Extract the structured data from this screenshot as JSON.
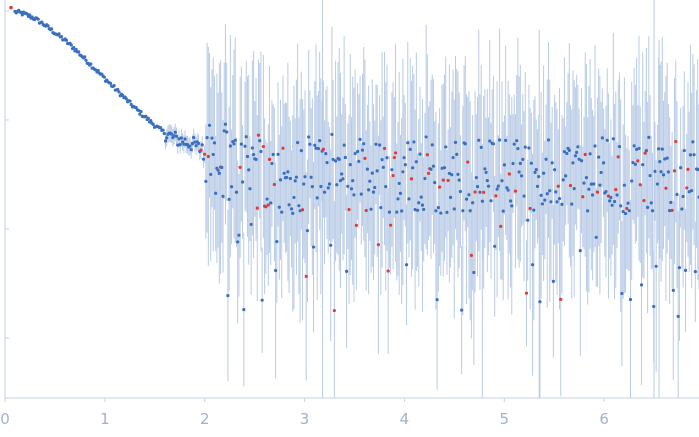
{
  "chart_data": {
    "type": "scatter",
    "title": "",
    "xlabel": "",
    "ylabel": "",
    "xlim": [
      0,
      6.95
    ],
    "ylim": [
      -1.55,
      2.1
    ],
    "y_scale": "log",
    "x_ticks": [
      "0",
      "1",
      "2",
      "3",
      "4",
      "5",
      "6"
    ],
    "grid": false,
    "legend": "none",
    "colors": {
      "points": "#3a6fc0",
      "outliers": "#e53935",
      "error_bars": "#b9cbe6",
      "axis_text": "#9fb3cc"
    },
    "series": [
      {
        "name": "",
        "x": [
          0.12,
          0.2,
          0.3,
          0.4,
          0.5,
          0.6,
          0.7,
          0.8,
          0.9,
          1.0,
          1.1,
          1.2,
          1.3,
          1.4,
          1.5,
          1.6,
          1.7,
          1.8,
          1.9,
          2.0,
          2.2,
          2.4,
          2.6,
          2.8,
          3.0,
          3.2,
          3.4,
          3.6,
          3.8,
          4.0,
          4.2,
          4.4,
          4.6,
          4.8,
          5.0,
          5.2,
          5.4,
          5.6,
          5.8,
          6.0,
          6.2,
          6.4,
          6.6,
          6.8,
          6.95
        ],
        "y": [
          1.99,
          1.97,
          1.93,
          1.87,
          1.8,
          1.73,
          1.65,
          1.56,
          1.47,
          1.38,
          1.29,
          1.2,
          1.11,
          1.03,
          0.95,
          0.88,
          0.83,
          0.8,
          0.77,
          0.7,
          0.62,
          0.55,
          0.5,
          0.48,
          0.5,
          0.55,
          0.48,
          0.52,
          0.5,
          0.48,
          0.52,
          0.46,
          0.5,
          0.48,
          0.5,
          0.52,
          0.48,
          0.5,
          0.46,
          0.5,
          0.48,
          0.52,
          0.5,
          0.48,
          0.5
        ]
      }
    ]
  }
}
